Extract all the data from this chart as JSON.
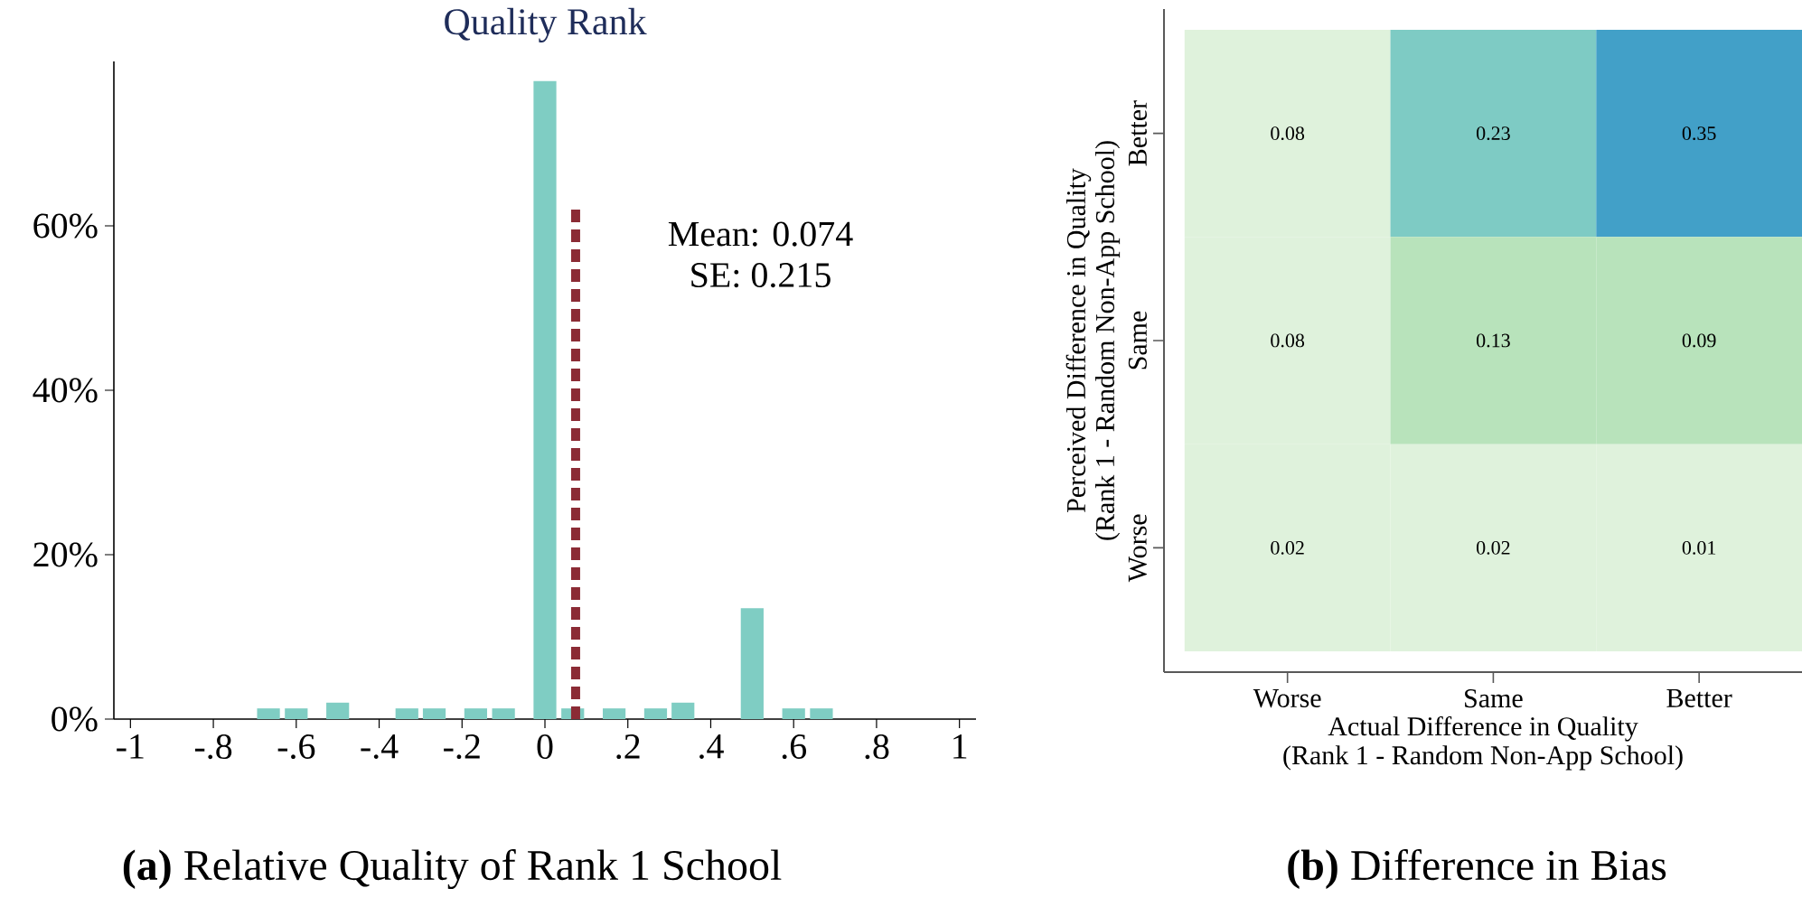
{
  "chart_data": [
    {
      "type": "bar",
      "title": "Quality Rank",
      "x": [
        -0.667,
        -0.6,
        -0.5,
        -0.333,
        -0.267,
        -0.167,
        -0.1,
        0,
        0.067,
        0.167,
        0.267,
        0.333,
        0.5,
        0.6,
        0.667
      ],
      "series": [
        {
          "color": "#7fcdc3",
          "values": [
            1.3,
            1.3,
            2,
            1.3,
            1.3,
            1.3,
            1.3,
            77.6,
            1.3,
            1.3,
            1.3,
            2,
            13.5,
            1.3,
            1.3
          ]
        },
        {
          "type": "line",
          "x": [
            0.074,
            0.074
          ],
          "values": [
            0,
            62.5
          ],
          "color": "#8b2b35",
          "line_style": "dashed"
        }
      ],
      "xlim": [
        -1.04,
        1.04
      ],
      "xticks": [
        {
          "value": -1,
          "label": "-1"
        },
        {
          "value": -0.8,
          "label": "-.8"
        },
        {
          "value": -0.6,
          "label": "-.6"
        },
        {
          "value": -0.4,
          "label": "-.4"
        },
        {
          "value": -0.2,
          "label": "-.2"
        },
        0,
        {
          "value": 0.2,
          "label": ".2"
        },
        {
          "value": 0.4,
          "label": ".4"
        },
        {
          "value": 0.6,
          "label": ".6"
        },
        {
          "value": 0.8,
          "label": ".8"
        },
        1
      ],
      "ylim": [
        0,
        80
      ],
      "yticks": [
        {
          "value": 0,
          "label": "0%"
        },
        {
          "value": 20,
          "label": "20%"
        },
        {
          "value": 40,
          "label": "40%"
        },
        {
          "value": 60,
          "label": "60%"
        }
      ],
      "annotations": [
        "Mean:  0.074",
        "SE:  0.215",
        "**(a)** Relative Quality of Rank 1 School"
      ]
    },
    {
      "type": "heatmap",
      "categories": [
        "Worse",
        "Same",
        "Better"
      ],
      "y_categories": [
        "Better",
        "Same",
        "Worse"
      ],
      "cells": [
        [
          0.08,
          0.23,
          0.35
        ],
        [
          0.08,
          0.13,
          0.09
        ],
        [
          0.02,
          0.02,
          0.01
        ]
      ],
      "data_labels": true,
      "xlabel": "Actual Difference in Quality (Rank 1 - Random Non-App School)",
      "ylabel": "Perceived Difference in Quality (Rank 1 - Random Non-App School)",
      "annotations": [
        "**(b)** Difference in Bias"
      ]
    }
  ]
}
